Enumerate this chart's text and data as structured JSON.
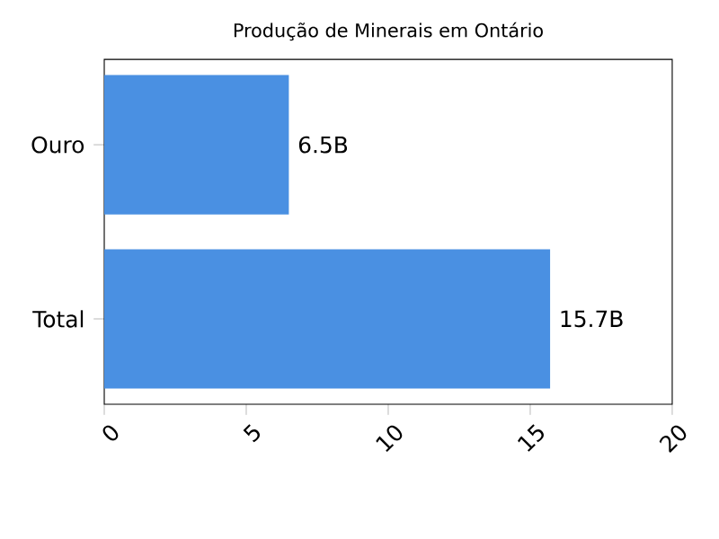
{
  "chart_data": {
    "type": "bar",
    "orientation": "horizontal",
    "title": "Produção de Minerais em Ontário",
    "categories": [
      "Ouro",
      "Total"
    ],
    "values": [
      6.5,
      15.7
    ],
    "value_labels": [
      "6.5B",
      "15.7B"
    ],
    "color": "#4a90e2",
    "xlim": [
      0,
      20
    ],
    "xticks": [
      0,
      5,
      10,
      15,
      20
    ]
  }
}
